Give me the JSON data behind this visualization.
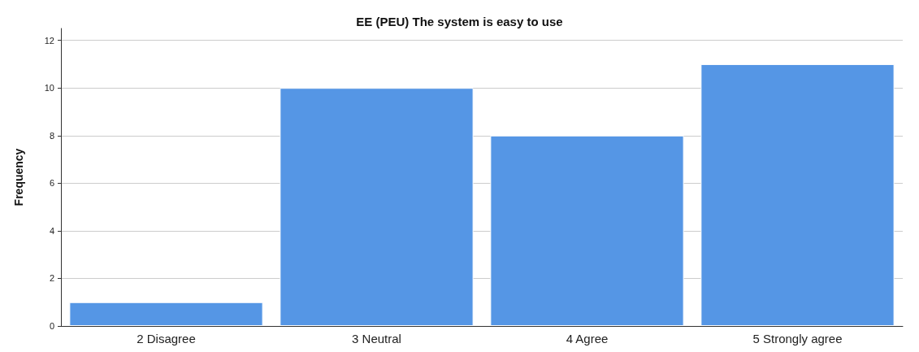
{
  "chart_data": {
    "type": "bar",
    "title": "EE (PEU) The system is easy to use",
    "ylabel": "Frequency",
    "categories": [
      "2 Disagree",
      "3 Neutral",
      "4 Agree",
      "5 Strongly agree"
    ],
    "values": [
      1,
      10,
      8,
      11
    ],
    "color": "#5596e5",
    "ylim": [
      0,
      12.5
    ],
    "yticks": [
      0,
      2,
      4,
      6,
      8,
      10,
      12
    ],
    "grid": "y"
  }
}
